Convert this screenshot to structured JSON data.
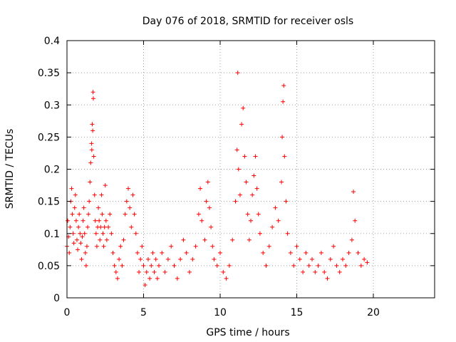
{
  "chart_data": {
    "type": "scatter",
    "title": "Day 076 of 2018, SRMTID for receiver osls",
    "xlabel": "GPS time / hours",
    "ylabel": "SRMTID / TECUs",
    "xlim": [
      0,
      24
    ],
    "ylim": [
      0,
      0.4
    ],
    "xticks": [
      0,
      5,
      10,
      15,
      20
    ],
    "xtick_labels": [
      "0",
      "5",
      "10",
      "15",
      "20"
    ],
    "yticks": [
      0,
      0.05,
      0.1,
      0.15,
      0.2,
      0.25,
      0.3,
      0.35,
      0.4
    ],
    "ytick_labels": [
      "0",
      "0.05",
      "0.1",
      "0.15",
      "0.2",
      "0.25",
      "0.3",
      "0.35",
      "0.4"
    ],
    "grid": true,
    "marker": "plus",
    "color": "#ff0000",
    "series": [
      {
        "points": [
          [
            0.0,
            0.08
          ],
          [
            0.05,
            0.12
          ],
          [
            0.1,
            0.095
          ],
          [
            0.15,
            0.07
          ],
          [
            0.2,
            0.11
          ],
          [
            0.25,
            0.15
          ],
          [
            0.3,
            0.17
          ],
          [
            0.35,
            0.13
          ],
          [
            0.4,
            0.1
          ],
          [
            0.45,
            0.085
          ],
          [
            0.5,
            0.14
          ],
          [
            0.55,
            0.16
          ],
          [
            0.6,
            0.12
          ],
          [
            0.65,
            0.09
          ],
          [
            0.7,
            0.075
          ],
          [
            0.75,
            0.11
          ],
          [
            0.8,
            0.13
          ],
          [
            0.85,
            0.1
          ],
          [
            0.9,
            0.085
          ],
          [
            0.95,
            0.06
          ],
          [
            1.0,
            0.095
          ],
          [
            1.05,
            0.12
          ],
          [
            1.1,
            0.14
          ],
          [
            1.15,
            0.1
          ],
          [
            1.2,
            0.07
          ],
          [
            1.25,
            0.05
          ],
          [
            1.3,
            0.08
          ],
          [
            1.35,
            0.11
          ],
          [
            1.4,
            0.13
          ],
          [
            1.45,
            0.15
          ],
          [
            1.5,
            0.18
          ],
          [
            1.55,
            0.21
          ],
          [
            1.6,
            0.24
          ],
          [
            1.62,
            0.23
          ],
          [
            1.65,
            0.27
          ],
          [
            1.68,
            0.26
          ],
          [
            1.7,
            0.32
          ],
          [
            1.72,
            0.31
          ],
          [
            1.75,
            0.22
          ],
          [
            1.8,
            0.16
          ],
          [
            1.85,
            0.12
          ],
          [
            1.9,
            0.1
          ],
          [
            1.95,
            0.08
          ],
          [
            2.0,
            0.11
          ],
          [
            2.05,
            0.14
          ],
          [
            2.1,
            0.12
          ],
          [
            2.15,
            0.09
          ],
          [
            2.2,
            0.11
          ],
          [
            2.25,
            0.16
          ],
          [
            2.3,
            0.13
          ],
          [
            2.35,
            0.1
          ],
          [
            2.4,
            0.08
          ],
          [
            2.45,
            0.11
          ],
          [
            2.5,
            0.175
          ],
          [
            2.55,
            0.12
          ],
          [
            2.6,
            0.09
          ],
          [
            2.7,
            0.11
          ],
          [
            2.8,
            0.13
          ],
          [
            2.9,
            0.1
          ],
          [
            3.0,
            0.07
          ],
          [
            3.1,
            0.05
          ],
          [
            3.2,
            0.04
          ],
          [
            3.3,
            0.03
          ],
          [
            3.4,
            0.06
          ],
          [
            3.5,
            0.08
          ],
          [
            3.6,
            0.05
          ],
          [
            3.7,
            0.09
          ],
          [
            3.8,
            0.13
          ],
          [
            3.9,
            0.15
          ],
          [
            4.0,
            0.17
          ],
          [
            4.1,
            0.14
          ],
          [
            4.2,
            0.11
          ],
          [
            4.3,
            0.16
          ],
          [
            4.4,
            0.13
          ],
          [
            4.5,
            0.1
          ],
          [
            4.6,
            0.07
          ],
          [
            4.7,
            0.04
          ],
          [
            4.8,
            0.06
          ],
          [
            4.9,
            0.08
          ],
          [
            5.0,
            0.05
          ],
          [
            5.1,
            0.02
          ],
          [
            5.2,
            0.04
          ],
          [
            5.3,
            0.06
          ],
          [
            5.4,
            0.03
          ],
          [
            5.5,
            0.05
          ],
          [
            5.6,
            0.07
          ],
          [
            5.7,
            0.04
          ],
          [
            5.8,
            0.06
          ],
          [
            5.9,
            0.03
          ],
          [
            6.0,
            0.05
          ],
          [
            6.2,
            0.07
          ],
          [
            6.4,
            0.04
          ],
          [
            6.6,
            0.06
          ],
          [
            6.8,
            0.08
          ],
          [
            7.0,
            0.05
          ],
          [
            7.2,
            0.03
          ],
          [
            7.4,
            0.06
          ],
          [
            7.6,
            0.09
          ],
          [
            7.8,
            0.07
          ],
          [
            8.0,
            0.04
          ],
          [
            8.2,
            0.06
          ],
          [
            8.4,
            0.08
          ],
          [
            8.6,
            0.13
          ],
          [
            8.7,
            0.17
          ],
          [
            8.8,
            0.12
          ],
          [
            9.0,
            0.09
          ],
          [
            9.1,
            0.15
          ],
          [
            9.2,
            0.18
          ],
          [
            9.3,
            0.14
          ],
          [
            9.4,
            0.11
          ],
          [
            9.5,
            0.08
          ],
          [
            9.6,
            0.06
          ],
          [
            9.8,
            0.05
          ],
          [
            10.0,
            0.07
          ],
          [
            10.2,
            0.04
          ],
          [
            10.4,
            0.03
          ],
          [
            10.6,
            0.05
          ],
          [
            10.8,
            0.09
          ],
          [
            11.0,
            0.15
          ],
          [
            11.1,
            0.23
          ],
          [
            11.15,
            0.35
          ],
          [
            11.2,
            0.2
          ],
          [
            11.3,
            0.16
          ],
          [
            11.4,
            0.27
          ],
          [
            11.5,
            0.295
          ],
          [
            11.6,
            0.22
          ],
          [
            11.7,
            0.18
          ],
          [
            11.8,
            0.13
          ],
          [
            11.9,
            0.09
          ],
          [
            12.0,
            0.12
          ],
          [
            12.1,
            0.16
          ],
          [
            12.2,
            0.19
          ],
          [
            12.3,
            0.22
          ],
          [
            12.4,
            0.17
          ],
          [
            12.5,
            0.13
          ],
          [
            12.6,
            0.1
          ],
          [
            12.8,
            0.07
          ],
          [
            13.0,
            0.05
          ],
          [
            13.2,
            0.08
          ],
          [
            13.4,
            0.11
          ],
          [
            13.6,
            0.14
          ],
          [
            13.8,
            0.12
          ],
          [
            14.0,
            0.18
          ],
          [
            14.05,
            0.25
          ],
          [
            14.1,
            0.305
          ],
          [
            14.15,
            0.33
          ],
          [
            14.2,
            0.22
          ],
          [
            14.3,
            0.15
          ],
          [
            14.4,
            0.1
          ],
          [
            14.6,
            0.07
          ],
          [
            14.8,
            0.05
          ],
          [
            15.0,
            0.08
          ],
          [
            15.2,
            0.06
          ],
          [
            15.4,
            0.04
          ],
          [
            15.6,
            0.07
          ],
          [
            15.8,
            0.05
          ],
          [
            16.0,
            0.06
          ],
          [
            16.2,
            0.04
          ],
          [
            16.4,
            0.05
          ],
          [
            16.6,
            0.07
          ],
          [
            16.8,
            0.04
          ],
          [
            17.0,
            0.03
          ],
          [
            17.2,
            0.06
          ],
          [
            17.4,
            0.08
          ],
          [
            17.6,
            0.05
          ],
          [
            17.8,
            0.04
          ],
          [
            18.0,
            0.06
          ],
          [
            18.2,
            0.05
          ],
          [
            18.4,
            0.07
          ],
          [
            18.6,
            0.09
          ],
          [
            18.7,
            0.165
          ],
          [
            18.8,
            0.12
          ],
          [
            19.0,
            0.07
          ],
          [
            19.2,
            0.05
          ],
          [
            19.4,
            0.06
          ],
          [
            19.6,
            0.055
          ]
        ]
      }
    ]
  }
}
